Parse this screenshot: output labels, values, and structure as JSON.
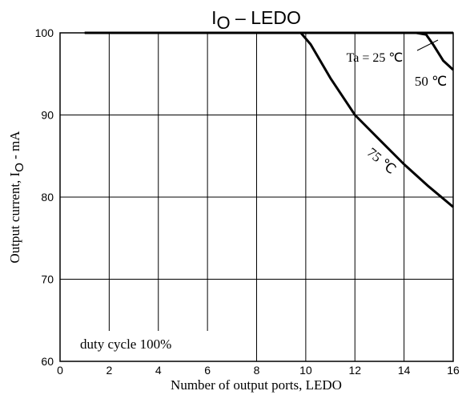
{
  "chart_data": {
    "type": "line",
    "title_main": "I",
    "title_sub": "O",
    "title_rest": " – LEDO",
    "xlabel": "Number of output ports, LEDO",
    "ylabel_main": "Output current,  I",
    "ylabel_sub": "O",
    "ylabel_rest": " - mA",
    "xlim": [
      0,
      16
    ],
    "ylim": [
      60,
      100
    ],
    "x_ticks": [
      0,
      2,
      4,
      6,
      8,
      10,
      12,
      14,
      16
    ],
    "y_ticks": [
      60,
      70,
      80,
      90,
      100
    ],
    "grid": true,
    "annotation": "duty cycle 100%",
    "series": [
      {
        "name": "Ta = 25 ℃",
        "points": [
          [
            1,
            100
          ],
          [
            16,
            100
          ]
        ]
      },
      {
        "name": "50 ℃",
        "points": [
          [
            14.5,
            100
          ],
          [
            14.9,
            99.8
          ],
          [
            15.2,
            98.5
          ],
          [
            15.6,
            96.6
          ],
          [
            16,
            95.5
          ]
        ]
      },
      {
        "name": "75 ℃",
        "points": [
          [
            9.8,
            100
          ],
          [
            10.2,
            98.6
          ],
          [
            11,
            94.5
          ],
          [
            12,
            90
          ],
          [
            13,
            87
          ],
          [
            14,
            84
          ],
          [
            15,
            81.3
          ],
          [
            16,
            78.8
          ]
        ]
      }
    ]
  }
}
